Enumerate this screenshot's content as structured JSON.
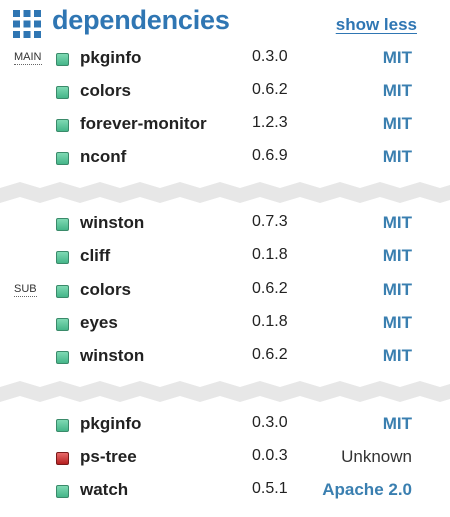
{
  "header": {
    "title": "dependencies",
    "toggle_label": "show less",
    "icon": "grid-icon"
  },
  "groups": {
    "main_label": "MAIN",
    "sub_label": "SUB"
  },
  "colors": {
    "accent": "#2f76b3",
    "ok": "#45b589",
    "error": "#b51f1f"
  },
  "deps": [
    {
      "name": "pkginfo",
      "version": "0.3.0",
      "license": "MIT",
      "status": "ok"
    },
    {
      "name": "colors",
      "version": "0.6.2",
      "license": "MIT",
      "status": "ok"
    },
    {
      "name": "forever-monitor",
      "version": "1.2.3",
      "license": "MIT",
      "status": "ok"
    },
    {
      "name": "nconf",
      "version": "0.6.9",
      "license": "MIT",
      "status": "ok"
    },
    {
      "name": "winston",
      "version": "0.7.3",
      "license": "MIT",
      "status": "ok"
    },
    {
      "name": "cliff",
      "version": "0.1.8",
      "license": "MIT",
      "status": "ok"
    },
    {
      "name": "colors",
      "version": "0.6.2",
      "license": "MIT",
      "status": "ok"
    },
    {
      "name": "eyes",
      "version": "0.1.8",
      "license": "MIT",
      "status": "ok"
    },
    {
      "name": "winston",
      "version": "0.6.2",
      "license": "MIT",
      "status": "ok"
    },
    {
      "name": "pkginfo",
      "version": "0.3.0",
      "license": "MIT",
      "status": "ok"
    },
    {
      "name": "ps-tree",
      "version": "0.0.3",
      "license": "Unknown",
      "status": "error"
    },
    {
      "name": "watch",
      "version": "0.5.1",
      "license": "Apache 2.0",
      "status": "ok"
    }
  ]
}
